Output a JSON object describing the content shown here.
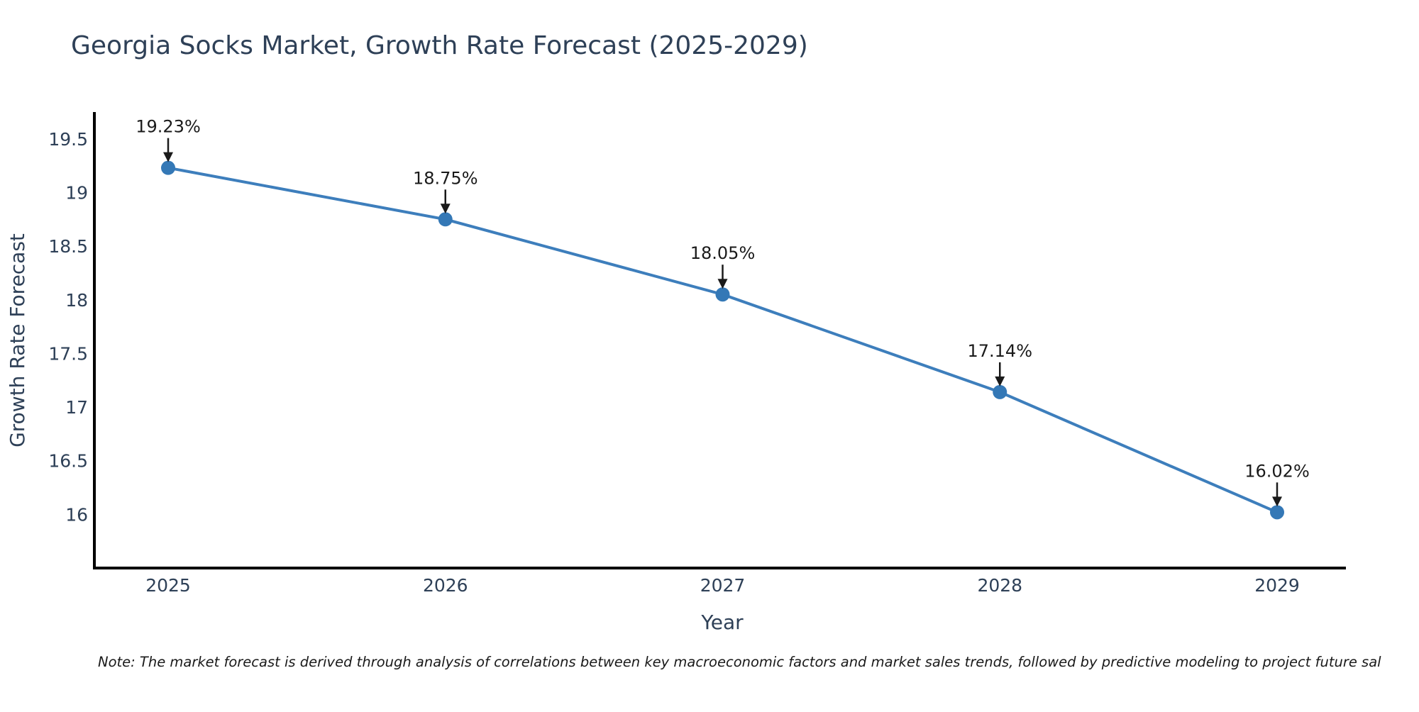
{
  "chart_data": {
    "type": "line",
    "title": "Georgia Socks Market, Growth Rate Forecast (2025-2029)",
    "xlabel": "Year",
    "ylabel": "Growth Rate Forecast",
    "categories": [
      "2025",
      "2026",
      "2027",
      "2028",
      "2029"
    ],
    "series": [
      {
        "name": "Growth Rate Forecast",
        "values": [
          19.23,
          18.75,
          18.05,
          17.14,
          16.02
        ]
      }
    ],
    "point_labels": [
      "19.23%",
      "18.75%",
      "18.05%",
      "17.14%",
      "16.02%"
    ],
    "y_ticks": [
      {
        "value": 16,
        "label": "16"
      },
      {
        "value": 16.5,
        "label": "16.5"
      },
      {
        "value": 17,
        "label": "17"
      },
      {
        "value": 17.5,
        "label": "17.5"
      },
      {
        "value": 18,
        "label": "18"
      },
      {
        "value": 18.5,
        "label": "18.5"
      },
      {
        "value": 19,
        "label": "19"
      },
      {
        "value": 19.5,
        "label": "19.5"
      }
    ],
    "ylim": [
      15.5,
      19.75
    ],
    "grid": false,
    "legend_position": "none",
    "annotation_style": "label-with-down-arrow",
    "colors": {
      "line": "#3d7ebc",
      "marker": "#3478b6",
      "axis": "#000000",
      "text": "#2e4057",
      "annotation": "#1a1a1a"
    }
  },
  "note": "Note: The market forecast is derived through analysis of correlations between key macroeconomic factors and market sales trends, followed by predictive modeling to project future sal"
}
